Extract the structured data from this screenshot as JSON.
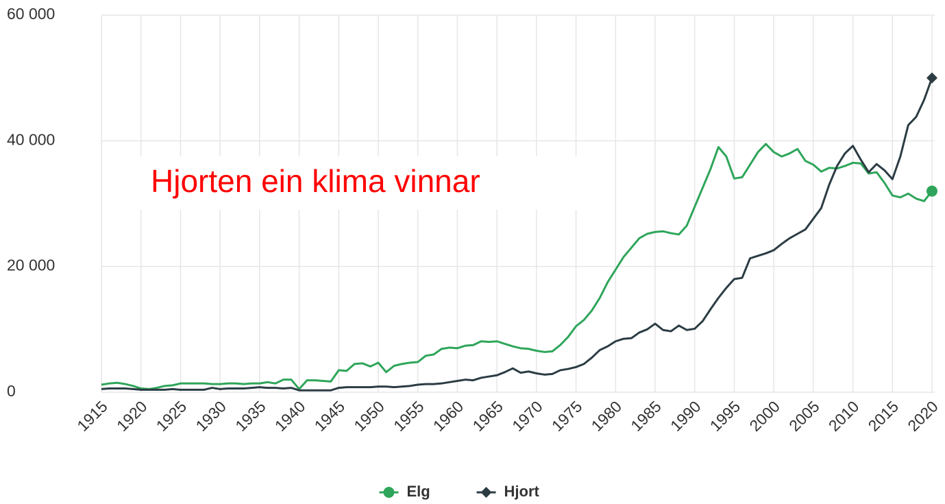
{
  "chart_data": {
    "type": "line",
    "annotation": "Hjorten ein klima vinnar",
    "x": [
      1915,
      1916,
      1917,
      1918,
      1919,
      1920,
      1921,
      1922,
      1923,
      1924,
      1925,
      1926,
      1927,
      1928,
      1929,
      1930,
      1931,
      1932,
      1933,
      1934,
      1935,
      1936,
      1937,
      1938,
      1939,
      1940,
      1941,
      1942,
      1943,
      1944,
      1945,
      1946,
      1947,
      1948,
      1949,
      1950,
      1951,
      1952,
      1953,
      1954,
      1955,
      1956,
      1957,
      1958,
      1959,
      1960,
      1961,
      1962,
      1963,
      1964,
      1965,
      1966,
      1967,
      1968,
      1969,
      1970,
      1971,
      1972,
      1973,
      1974,
      1975,
      1976,
      1977,
      1978,
      1979,
      1980,
      1981,
      1982,
      1983,
      1984,
      1985,
      1986,
      1987,
      1988,
      1989,
      1990,
      1991,
      1992,
      1993,
      1994,
      1995,
      1996,
      1997,
      1998,
      1999,
      2000,
      2001,
      2002,
      2003,
      2004,
      2005,
      2006,
      2007,
      2008,
      2009,
      2010,
      2011,
      2012,
      2013,
      2014,
      2015,
      2016,
      2017,
      2018,
      2019,
      2020
    ],
    "series": [
      {
        "name": "Elg",
        "color": "#2ea55a",
        "marker": "circle",
        "values": [
          1200,
          1400,
          1500,
          1300,
          1000,
          600,
          500,
          700,
          1000,
          1100,
          1400,
          1400,
          1400,
          1400,
          1300,
          1300,
          1400,
          1400,
          1300,
          1400,
          1400,
          1600,
          1400,
          2000,
          2000,
          500,
          1900,
          1900,
          1800,
          1700,
          3500,
          3400,
          4500,
          4600,
          4100,
          4700,
          3200,
          4200,
          4500,
          4700,
          4800,
          5800,
          6000,
          6900,
          7100,
          7000,
          7400,
          7500,
          8100,
          8000,
          8100,
          7700,
          7300,
          7000,
          6900,
          6600,
          6400,
          6500,
          7500,
          8800,
          10500,
          11500,
          13000,
          15000,
          17500,
          19500,
          21500,
          23000,
          24500,
          25200,
          25500,
          25600,
          25300,
          25100,
          26500,
          29500,
          32500,
          35500,
          39000,
          37500,
          34000,
          34200,
          36200,
          38200,
          39500,
          38200,
          37500,
          38000,
          38700,
          36800,
          36200,
          35100,
          35700,
          35600,
          36000,
          36500,
          36400,
          34800,
          35000,
          33300,
          31300,
          31000,
          31600,
          30800,
          30400,
          32000
        ]
      },
      {
        "name": "Hjort",
        "color": "#2b3c43",
        "marker": "diamond",
        "values": [
          500,
          600,
          600,
          600,
          500,
          400,
          400,
          400,
          400,
          500,
          400,
          400,
          400,
          400,
          700,
          500,
          600,
          600,
          600,
          700,
          800,
          700,
          700,
          600,
          700,
          300,
          300,
          300,
          300,
          300,
          700,
          800,
          800,
          800,
          800,
          900,
          900,
          800,
          900,
          1000,
          1200,
          1300,
          1300,
          1400,
          1600,
          1800,
          2000,
          1900,
          2300,
          2500,
          2700,
          3200,
          3800,
          3100,
          3300,
          3000,
          2800,
          2900,
          3500,
          3700,
          4000,
          4500,
          5500,
          6700,
          7300,
          8100,
          8500,
          8600,
          9500,
          10000,
          10900,
          9900,
          9700,
          10600,
          9900,
          10100,
          11300,
          13200,
          15000,
          16600,
          18000,
          18200,
          21300,
          21700,
          22100,
          22600,
          23600,
          24500,
          25200,
          25900,
          27600,
          29300,
          33000,
          36000,
          38000,
          39200,
          37000,
          35000,
          36300,
          35300,
          33900,
          37500,
          42500,
          43800,
          46500,
          50000
        ]
      }
    ],
    "xlim": [
      1915,
      2020
    ],
    "xticks": [
      1915,
      1920,
      1925,
      1930,
      1935,
      1940,
      1945,
      1950,
      1955,
      1960,
      1965,
      1970,
      1975,
      1980,
      1985,
      1990,
      1995,
      2000,
      2005,
      2010,
      2015,
      2020
    ],
    "ylim": [
      0,
      60000
    ],
    "yticks": [
      0,
      {
        "value": 20000,
        "label": "20 000"
      },
      {
        "value": 40000,
        "label": "40 000"
      },
      {
        "value": 60000,
        "label": "60 000"
      }
    ],
    "grid": true,
    "legend": "bottom"
  }
}
